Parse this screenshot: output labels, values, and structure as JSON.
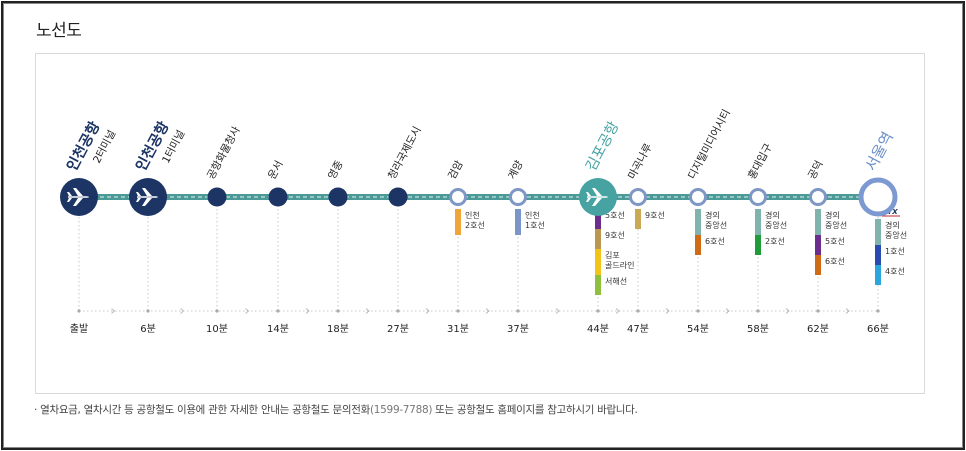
{
  "page_title": "노선도",
  "notice": {
    "bullet": "·",
    "before": "열차요금, 열차시간 등 공항철도 이용에 관한 자세한 안내는 공항철도 문의전화",
    "phone": "(1599-7788)",
    "after": " 또는 공항철도 홈페이지를 참고하시기 바랍니다."
  },
  "colors": {
    "navy": "#1c3565",
    "teal": "#3e9a99",
    "kimpo": "#47a2a2",
    "seoul": "#6b8fc7",
    "line_main": "#4a9b98"
  },
  "stations": [
    {
      "id": "incheon-airport-t2",
      "name": "인천공항",
      "sub": "2터미널",
      "type": "airport",
      "time": "출발",
      "label_style": "big"
    },
    {
      "id": "incheon-airport-t1",
      "name": "인천공항",
      "sub": "1터미널",
      "type": "airport",
      "time": "6분",
      "label_style": "big"
    },
    {
      "id": "cargo-terminal",
      "name": "공항화물청사",
      "type": "navy",
      "time": "10분"
    },
    {
      "id": "unseo",
      "name": "운서",
      "type": "navy",
      "time": "14분"
    },
    {
      "id": "yeongjong",
      "name": "영종",
      "type": "navy",
      "time": "18분"
    },
    {
      "id": "cheongna",
      "name": "청라국제도시",
      "type": "navy",
      "time": "27분"
    },
    {
      "id": "geomam",
      "name": "검암",
      "type": "ring",
      "time": "31분",
      "transfers": [
        {
          "label": "인천\n2호선",
          "color": "#f0a53a"
        }
      ]
    },
    {
      "id": "gyeyang",
      "name": "계양",
      "type": "ring",
      "time": "37분",
      "transfers": [
        {
          "label": "인천\n1호선",
          "color": "#7a95c8"
        }
      ]
    },
    {
      "id": "gimpo-airport",
      "name": "김포공항",
      "type": "gimpo",
      "time": "44분",
      "transfers": [
        {
          "label": "5호선",
          "color": "#6b2e8e"
        },
        {
          "label": "9호선",
          "color": "#b99750"
        },
        {
          "label": "김포\n골드라인",
          "color": "#f2c318"
        },
        {
          "label": "서해선",
          "color": "#8fbf3c"
        }
      ]
    },
    {
      "id": "magongnaru",
      "name": "마곡나루",
      "type": "ring",
      "time": "47분",
      "transfers": [
        {
          "label": "9호선",
          "color": "#c9a856"
        }
      ]
    },
    {
      "id": "dmc",
      "name": "디지털미디어시티",
      "type": "ring",
      "time": "54분",
      "transfers": [
        {
          "label": "경의\n중앙선",
          "color": "#7fb3ab"
        },
        {
          "label": "6호선",
          "color": "#cf6a16"
        }
      ]
    },
    {
      "id": "hongik",
      "name": "홍대입구",
      "type": "ring",
      "time": "58분",
      "transfers": [
        {
          "label": "경의\n중앙선",
          "color": "#7fb3ab"
        },
        {
          "label": "2호선",
          "color": "#1f9b3a"
        }
      ]
    },
    {
      "id": "gongdeok",
      "name": "공덕",
      "type": "ring",
      "time": "62분",
      "transfers": [
        {
          "label": "경의\n중앙선",
          "color": "#7fb3ab"
        },
        {
          "label": "5호선",
          "color": "#6b2e8e"
        },
        {
          "label": "6호선",
          "color": "#cf6a16"
        }
      ]
    },
    {
      "id": "seoul",
      "name": "서울역",
      "type": "seoul",
      "time": "66분",
      "transfers": [
        {
          "label": "KTX",
          "color": "#ffffff",
          "ktx": true
        },
        {
          "label": "경의\n중앙선",
          "color": "#7fb3ab"
        },
        {
          "label": "1호선",
          "color": "#2a4ab0"
        },
        {
          "label": "4호선",
          "color": "#2aa6dc"
        }
      ]
    }
  ]
}
